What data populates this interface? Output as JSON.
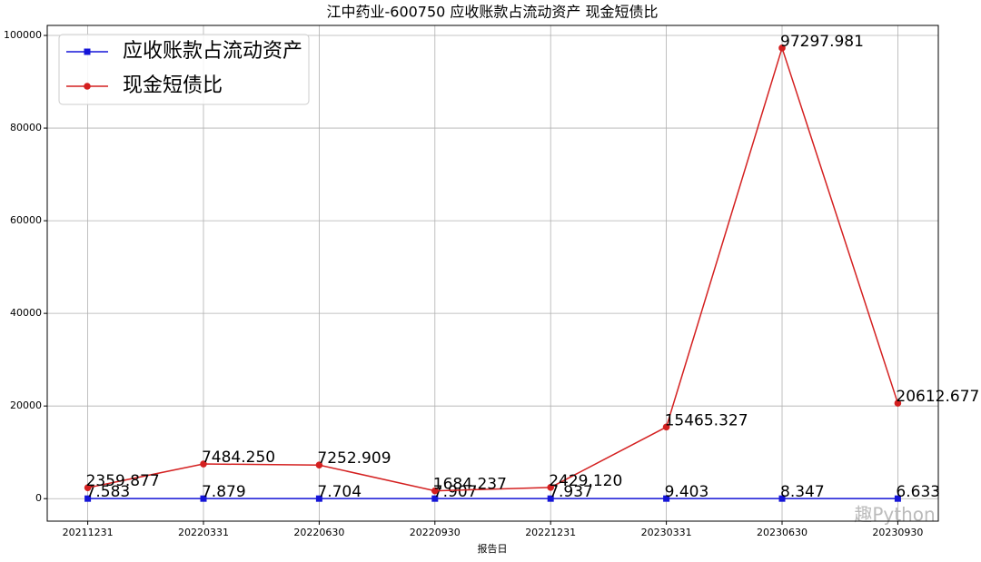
{
  "chart_data": {
    "type": "line",
    "title": "江中药业-600750 应收账款占流动资产 现金短债比",
    "x_label": "报告日",
    "categories": [
      "20211231",
      "20220331",
      "20220630",
      "20220930",
      "20221231",
      "20230331",
      "20230630",
      "20230930"
    ],
    "series": [
      {
        "name": "应收账款占流动资产",
        "color": "#1515d8",
        "marker": "square",
        "values": [
          7.583,
          7.879,
          7.704,
          7.907,
          7.937,
          9.403,
          8.347,
          6.633
        ],
        "value_labels": [
          "7.583",
          "7.879",
          "7.704",
          "7.907",
          "7.937",
          "9.403",
          "8.347",
          "6.633"
        ]
      },
      {
        "name": "现金短债比",
        "color": "#d42020",
        "marker": "circle",
        "values": [
          2359.877,
          7484.25,
          7252.909,
          1684.237,
          2429.12,
          15465.327,
          97297.981,
          20612.677
        ],
        "value_labels": [
          "2359.877",
          "7484.250",
          "7252.909",
          "1684.237",
          "2429.120",
          "15465.327",
          "97297.981",
          "20612.677"
        ]
      }
    ],
    "ylim": [
      -4858,
      102162
    ],
    "yticks": [
      0,
      20000,
      40000,
      60000,
      80000,
      100000
    ],
    "grid": true,
    "legend": "upper-left",
    "watermark": "趣Python"
  }
}
